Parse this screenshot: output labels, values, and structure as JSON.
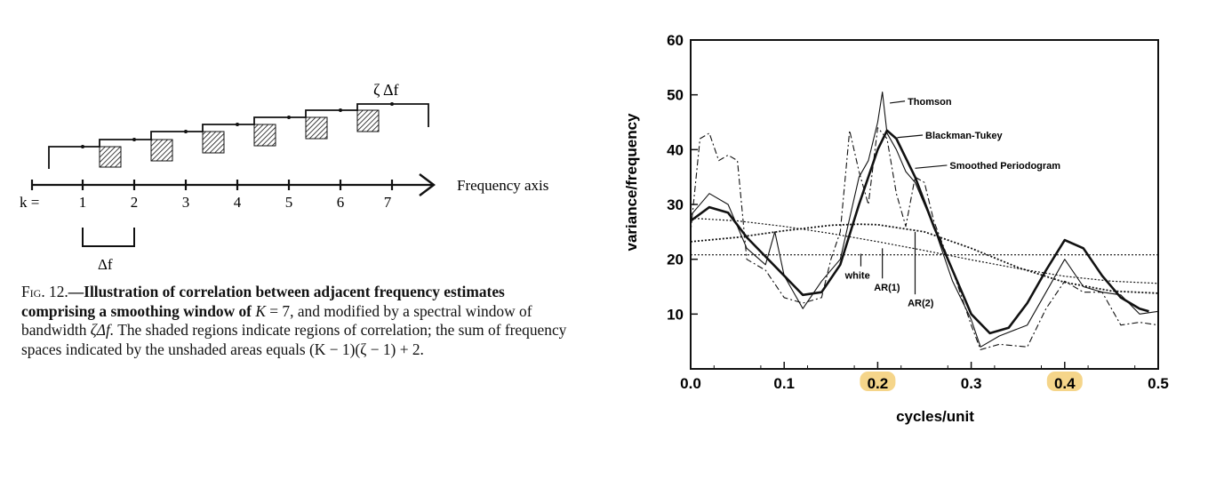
{
  "left_figure": {
    "zeta_label": "ζ Δf",
    "k_label": "k =",
    "k_ticks": [
      "1",
      "2",
      "3",
      "4",
      "5",
      "6",
      "7"
    ],
    "axis_label": "Frequency axis",
    "delta_label": "Δf",
    "caption": {
      "fig": "Fig. 12.",
      "lead": "—Illustration of correlation between adjacent frequency estimates comprising a smoothing window of ",
      "k_eq": "K",
      "mid1": " = 7, and modified by a spectral window of bandwidth ",
      "zeta": "ζΔf.",
      "rest": " The shaded regions indicate regions of correlation; the sum of frequency spaces indicated by the unshaded areas equals (K − 1)(ζ − 1) + 2."
    }
  },
  "chart_data": {
    "type": "line",
    "title": "",
    "xlabel": "cycles/unit",
    "ylabel": "variance/frequency",
    "xlim": [
      0.0,
      0.5
    ],
    "ylim": [
      0,
      60
    ],
    "x_ticks": [
      "0.0",
      "0.1",
      "0.2",
      "0.3",
      "0.4",
      "0.5"
    ],
    "x_ticks_highlighted": [
      "0.2",
      "0.4"
    ],
    "y_ticks": [
      "10",
      "20",
      "30",
      "40",
      "50",
      "60"
    ],
    "highlight_color": "#f5d58a",
    "annotations": [
      "Thomson",
      "Blackman-Tukey",
      "Smoothed Periodogram",
      "white",
      "AR(1)",
      "AR(2)"
    ],
    "series": [
      {
        "name": "Blackman-Tukey",
        "x": [
          0.0,
          0.02,
          0.04,
          0.06,
          0.08,
          0.1,
          0.12,
          0.14,
          0.16,
          0.18,
          0.2,
          0.21,
          0.22,
          0.24,
          0.26,
          0.28,
          0.3,
          0.32,
          0.34,
          0.36,
          0.38,
          0.4,
          0.42,
          0.44,
          0.46,
          0.48,
          0.49
        ],
        "y": [
          27,
          29.5,
          28.5,
          24,
          20.5,
          17,
          13.5,
          14,
          19,
          30,
          40,
          43.5,
          42,
          35,
          26,
          18,
          10,
          6.5,
          7.5,
          12,
          18,
          23.5,
          22,
          17,
          13,
          11,
          10.5
        ]
      },
      {
        "name": "Thomson",
        "x": [
          0.0,
          0.02,
          0.04,
          0.06,
          0.08,
          0.09,
          0.1,
          0.12,
          0.14,
          0.16,
          0.18,
          0.19,
          0.2,
          0.205,
          0.21,
          0.22,
          0.23,
          0.24,
          0.26,
          0.28,
          0.3,
          0.31,
          0.33,
          0.36,
          0.38,
          0.4,
          0.42,
          0.44,
          0.46,
          0.48,
          0.5
        ],
        "y": [
          28,
          32,
          30,
          22,
          19,
          25,
          17,
          11,
          16,
          20,
          35,
          38,
          45,
          50.5,
          43,
          40,
          36,
          34,
          26,
          16,
          9,
          4,
          6,
          8,
          14,
          20,
          15,
          14,
          13.5,
          10,
          10.5
        ]
      },
      {
        "name": "Smoothed Periodogram",
        "x": [
          0.0,
          0.01,
          0.02,
          0.03,
          0.04,
          0.05,
          0.06,
          0.08,
          0.1,
          0.12,
          0.14,
          0.15,
          0.16,
          0.17,
          0.18,
          0.19,
          0.2,
          0.21,
          0.22,
          0.23,
          0.24,
          0.25,
          0.26,
          0.28,
          0.3,
          0.31,
          0.33,
          0.36,
          0.38,
          0.4,
          0.42,
          0.44,
          0.46,
          0.48,
          0.5
        ],
        "y": [
          25,
          42,
          43,
          38,
          39,
          38,
          20,
          18,
          13,
          12,
          13,
          20,
          25,
          43.5,
          36,
          30,
          44,
          42,
          32,
          26,
          35,
          34,
          27,
          18,
          8,
          3.5,
          4.5,
          4,
          11,
          16,
          14,
          14,
          8,
          8.5,
          8
        ]
      },
      {
        "name": "white",
        "x": [
          0.0,
          0.5
        ],
        "y": [
          20.8,
          20.8
        ]
      },
      {
        "name": "AR(1)",
        "x": [
          0.0,
          0.05,
          0.1,
          0.15,
          0.2,
          0.25,
          0.3,
          0.35,
          0.4,
          0.45,
          0.5
        ],
        "y": [
          27.5,
          27,
          26,
          24.7,
          23.2,
          21.6,
          19.9,
          18.3,
          16.9,
          16,
          15.6
        ]
      },
      {
        "name": "AR(2)",
        "x": [
          0.0,
          0.05,
          0.1,
          0.15,
          0.18,
          0.2,
          0.25,
          0.3,
          0.35,
          0.4,
          0.45,
          0.5
        ],
        "y": [
          23.2,
          24,
          25.2,
          26.2,
          26.4,
          26.3,
          25,
          22,
          18.5,
          15.8,
          14.2,
          13.8
        ]
      }
    ]
  }
}
